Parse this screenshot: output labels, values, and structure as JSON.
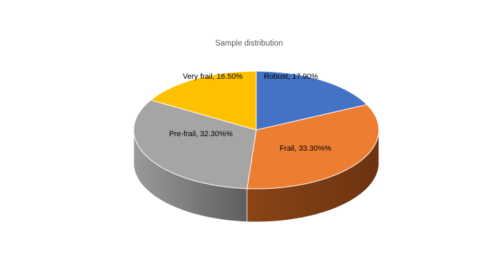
{
  "chart_data": {
    "type": "pie",
    "style": "3d",
    "title": "Sample distribution",
    "categories": [
      "Robust",
      "Frail",
      "Pre-frail",
      "Very frail"
    ],
    "values": [
      17.9,
      33.3,
      32.3,
      16.5
    ],
    "data_labels": [
      "Robust, 17.90%",
      "Frail, 33.30%%",
      "Pre-frail, 32.30%%",
      "Very frail, 16.50%"
    ],
    "colors": [
      "#4472C4",
      "#ED7D31",
      "#A5A5A5",
      "#FFC000"
    ],
    "side_colors": [
      "#2f4f8a",
      "#6b3310",
      "#5e5e5e",
      "#a67c00"
    ],
    "legend": "none"
  }
}
